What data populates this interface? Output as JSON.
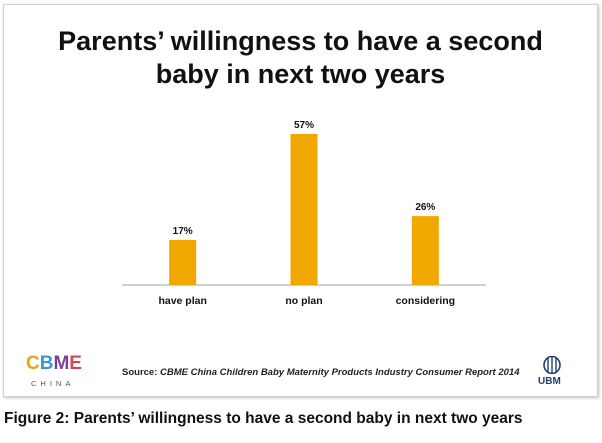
{
  "slide": {
    "title_line1": "Parents’ willingness to have a second",
    "title_line2": "baby in next two years",
    "source_label": "Source:",
    "source_text": "CBME China Children Baby Maternity Products Industry Consumer Report 2014"
  },
  "logos": {
    "cbme_letters": [
      "C",
      "B",
      "M",
      "E"
    ],
    "cbme_sub": "CHINA",
    "ubm_text": "UBM"
  },
  "caption": "Figure 2: Parents’ willingness to have a second baby in next two years",
  "colors": {
    "bar": "#f0a800",
    "axis": "#a0a0a0",
    "text": "#111111"
  },
  "chart_data": {
    "type": "bar",
    "title": "Parents’ willingness to have a second baby in next two years",
    "categories": [
      "have plan",
      "no plan",
      "considering"
    ],
    "values": [
      17,
      57,
      26
    ],
    "value_labels": [
      "17%",
      "57%",
      "26%"
    ],
    "ylim": [
      0,
      60
    ],
    "grid": false,
    "legend": "none"
  }
}
